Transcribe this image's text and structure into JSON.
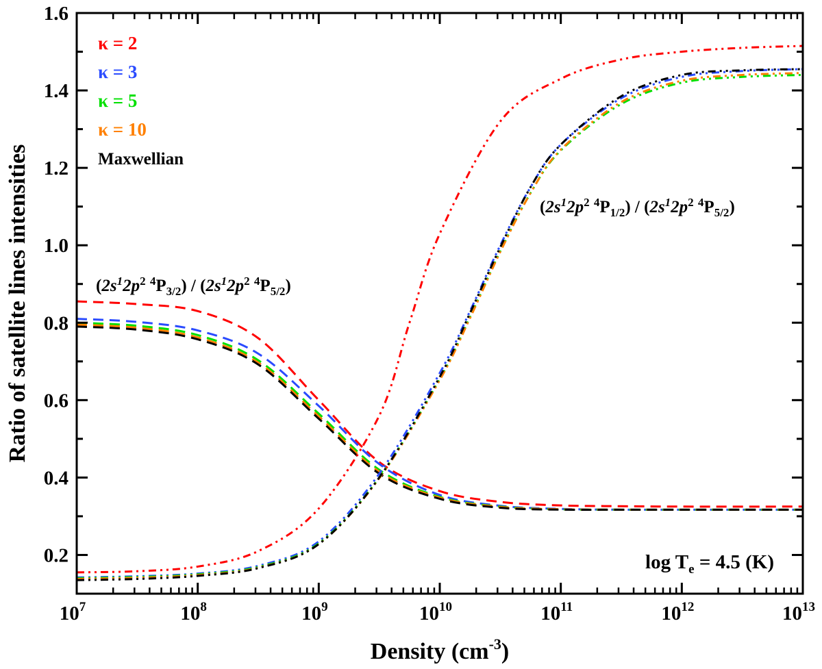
{
  "chart_data": {
    "type": "line",
    "xlabel": "Density (cm",
    "xlabel_sup": "-3",
    "xlabel_end": ")",
    "ylabel": "Ratio of satellite lines intensities",
    "x_scale": "log",
    "xlim": [
      10000000.0,
      10000000000000.0
    ],
    "ylim": [
      0.1,
      1.6
    ],
    "grid": false,
    "x_ticks": [
      {
        "base": "10",
        "exp": "7",
        "value": 7
      },
      {
        "base": "10",
        "exp": "8",
        "value": 8
      },
      {
        "base": "10",
        "exp": "9",
        "value": 9
      },
      {
        "base": "10",
        "exp": "10",
        "value": 10
      },
      {
        "base": "10",
        "exp": "11",
        "value": 11
      },
      {
        "base": "10",
        "exp": "12",
        "value": 12
      },
      {
        "base": "10",
        "exp": "13",
        "value": 13
      }
    ],
    "y_ticks": [
      "0.2",
      "0.4",
      "0.6",
      "0.8",
      "1.0",
      "1.2",
      "1.4",
      "1.6"
    ],
    "legend_placement": "top-left",
    "legend": [
      {
        "label": "κ = 2",
        "color": "#ff0000"
      },
      {
        "label": "κ = 3",
        "color": "#2a4bff"
      },
      {
        "label": "κ = 5",
        "color": "#00e000"
      },
      {
        "label": "κ = 10",
        "color": "#ff8000"
      },
      {
        "label": "Maxwellian",
        "color": "#000000"
      }
    ],
    "annotations": {
      "temperature": {
        "pre": "log T",
        "sub": "e",
        "post": " = 4.5 (K)"
      },
      "ratio_low": [
        {
          "t": "(",
          "s": "n"
        },
        {
          "t": "2s",
          "s": "i"
        },
        {
          "t": "1",
          "s": "sup-i"
        },
        {
          "t": "2p",
          "s": "i"
        },
        {
          "t": "2",
          "s": "sup"
        },
        {
          "t": " ",
          "s": "n"
        },
        {
          "t": "4",
          "s": "sup"
        },
        {
          "t": "P",
          "s": "n"
        },
        {
          "t": "3/2",
          "s": "sub"
        },
        {
          "t": ") / (",
          "s": "n"
        },
        {
          "t": "2s",
          "s": "i"
        },
        {
          "t": "1",
          "s": "sup-i"
        },
        {
          "t": "2p",
          "s": "i"
        },
        {
          "t": "2",
          "s": "sup"
        },
        {
          "t": " ",
          "s": "n"
        },
        {
          "t": "4",
          "s": "sup"
        },
        {
          "t": "P",
          "s": "n"
        },
        {
          "t": "5/2",
          "s": "sub"
        },
        {
          "t": ")",
          "s": "n"
        }
      ],
      "ratio_high": [
        {
          "t": "(",
          "s": "n"
        },
        {
          "t": "2s",
          "s": "i"
        },
        {
          "t": "1",
          "s": "sup-i"
        },
        {
          "t": "2p",
          "s": "i"
        },
        {
          "t": "2",
          "s": "sup"
        },
        {
          "t": " ",
          "s": "n"
        },
        {
          "t": "4",
          "s": "sup"
        },
        {
          "t": "P",
          "s": "n"
        },
        {
          "t": "1/2",
          "s": "sub"
        },
        {
          "t": ") / (",
          "s": "n"
        },
        {
          "t": "2s",
          "s": "i"
        },
        {
          "t": "1",
          "s": "sup-i"
        },
        {
          "t": "2p",
          "s": "i"
        },
        {
          "t": "2",
          "s": "sup"
        },
        {
          "t": " ",
          "s": "n"
        },
        {
          "t": "4",
          "s": "sup"
        },
        {
          "t": "P",
          "s": "n"
        },
        {
          "t": "5/2",
          "s": "sub"
        },
        {
          "t": ")",
          "s": "n"
        }
      ]
    },
    "series": [
      {
        "legend_index": 0,
        "style": "dashed",
        "color": "#ff0000",
        "log_x": [
          7,
          7.5,
          8,
          8.5,
          9,
          9.5,
          10,
          10.5,
          11,
          11.5,
          12,
          13
        ],
        "y": [
          0.855,
          0.848,
          0.83,
          0.76,
          0.6,
          0.44,
          0.365,
          0.337,
          0.328,
          0.326,
          0.325,
          0.325
        ]
      },
      {
        "legend_index": 1,
        "style": "dashed",
        "color": "#2a4bff",
        "log_x": [
          7,
          7.5,
          8,
          8.5,
          9,
          9.5,
          10,
          10.5,
          11,
          11.5,
          12,
          13
        ],
        "y": [
          0.81,
          0.802,
          0.78,
          0.72,
          0.585,
          0.435,
          0.355,
          0.327,
          0.319,
          0.317,
          0.317,
          0.317
        ]
      },
      {
        "legend_index": 2,
        "style": "dashed",
        "color": "#00e000",
        "log_x": [
          7,
          7.5,
          8,
          8.5,
          9,
          9.5,
          10,
          10.5,
          11,
          11.5,
          12,
          13
        ],
        "y": [
          0.8,
          0.792,
          0.768,
          0.703,
          0.565,
          0.42,
          0.35,
          0.325,
          0.318,
          0.317,
          0.317,
          0.317
        ]
      },
      {
        "legend_index": 3,
        "style": "dashed",
        "color": "#ff8000",
        "log_x": [
          7,
          7.5,
          8,
          8.5,
          9,
          9.5,
          10,
          10.5,
          11,
          11.5,
          12,
          13
        ],
        "y": [
          0.795,
          0.787,
          0.762,
          0.697,
          0.558,
          0.415,
          0.348,
          0.324,
          0.318,
          0.317,
          0.317,
          0.317
        ]
      },
      {
        "legend_index": 4,
        "style": "dashed",
        "color": "#000000",
        "log_x": [
          7,
          7.5,
          8,
          8.5,
          9,
          9.5,
          10,
          10.5,
          11,
          11.5,
          12,
          13
        ],
        "y": [
          0.79,
          0.782,
          0.757,
          0.692,
          0.552,
          0.41,
          0.345,
          0.322,
          0.317,
          0.317,
          0.317,
          0.317
        ]
      },
      {
        "legend_index": 0,
        "style": "dash-dot-dot",
        "color": "#ff0000",
        "log_x": [
          7,
          7.5,
          8,
          8.5,
          9,
          9.5,
          9.75,
          10,
          10.5,
          11,
          11.5,
          12,
          12.5,
          13
        ],
        "y": [
          0.155,
          0.158,
          0.17,
          0.21,
          0.32,
          0.56,
          0.8,
          1.03,
          1.32,
          1.43,
          1.48,
          1.5,
          1.51,
          1.515
        ]
      },
      {
        "legend_index": 1,
        "style": "dash-dot-dot",
        "color": "#2a4bff",
        "log_x": [
          7,
          7.5,
          8,
          8.5,
          9,
          9.5,
          10,
          10.25,
          10.5,
          10.75,
          11,
          11.5,
          12,
          12.5,
          13
        ],
        "y": [
          0.142,
          0.145,
          0.152,
          0.172,
          0.235,
          0.41,
          0.67,
          0.83,
          1.0,
          1.15,
          1.26,
          1.38,
          1.435,
          1.45,
          1.455
        ]
      },
      {
        "legend_index": 2,
        "style": "dash-dot-dot",
        "color": "#00e000",
        "log_x": [
          7,
          7.5,
          8,
          8.5,
          9,
          9.5,
          10,
          10.25,
          10.5,
          10.75,
          11,
          11.5,
          12,
          12.5,
          13
        ],
        "y": [
          0.14,
          0.143,
          0.15,
          0.169,
          0.23,
          0.4,
          0.655,
          0.815,
          0.985,
          1.135,
          1.245,
          1.365,
          1.42,
          1.435,
          1.44
        ]
      },
      {
        "legend_index": 3,
        "style": "dash-dot-dot",
        "color": "#ff8000",
        "log_x": [
          7,
          7.5,
          8,
          8.5,
          9,
          9.5,
          10,
          10.25,
          10.5,
          10.75,
          11,
          11.5,
          12,
          12.5,
          13
        ],
        "y": [
          0.138,
          0.141,
          0.148,
          0.167,
          0.228,
          0.398,
          0.652,
          0.812,
          0.983,
          1.135,
          1.247,
          1.37,
          1.425,
          1.44,
          1.445
        ]
      },
      {
        "legend_index": 4,
        "style": "dash-dot-dot",
        "color": "#000000",
        "log_x": [
          7,
          7.5,
          8,
          8.5,
          9,
          9.5,
          10,
          10.25,
          10.5,
          10.75,
          11,
          11.5,
          12,
          12.5,
          13
        ],
        "y": [
          0.135,
          0.138,
          0.146,
          0.166,
          0.228,
          0.4,
          0.66,
          0.825,
          0.995,
          1.15,
          1.26,
          1.385,
          1.44,
          1.452,
          1.455
        ]
      }
    ]
  }
}
